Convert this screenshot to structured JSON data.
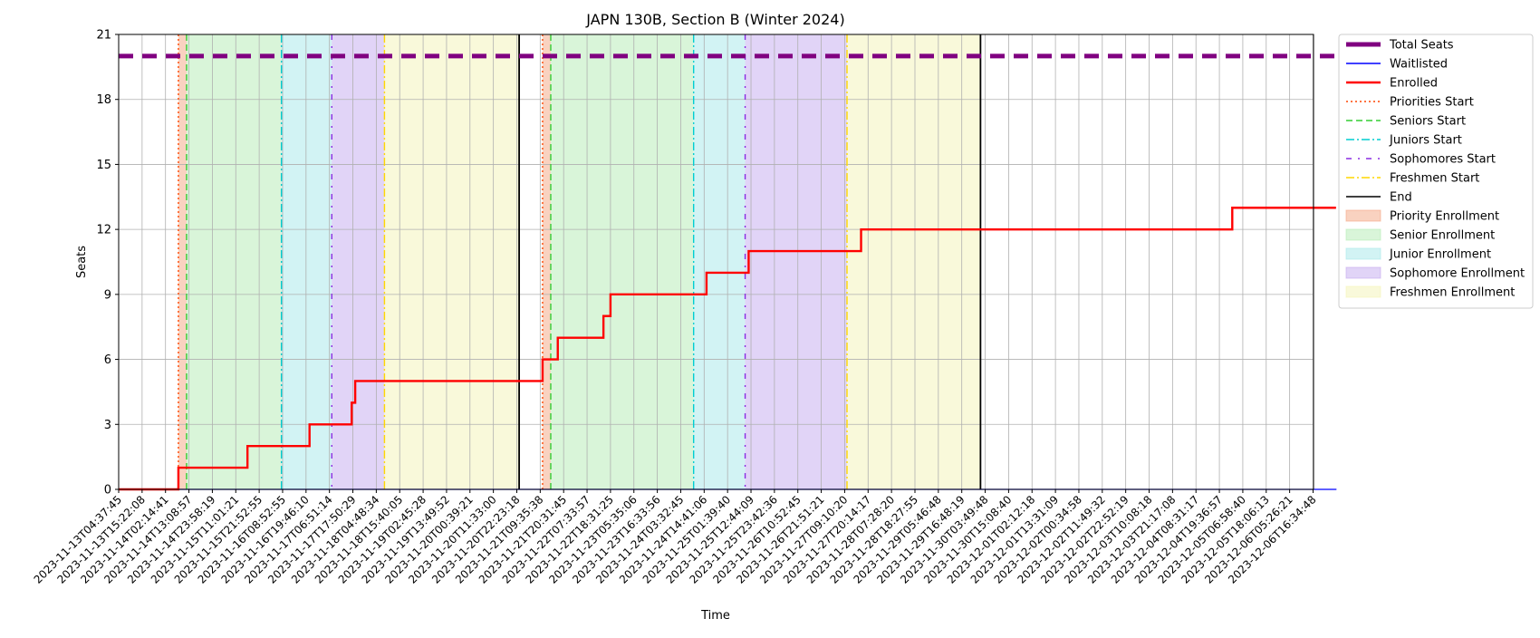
{
  "chart_data": {
    "type": "line",
    "title": "JAPN 130B, Section B (Winter 2024)",
    "xlabel": "Time",
    "ylabel": "Seats",
    "ylim": [
      0,
      21
    ],
    "yticks": [
      0,
      3,
      6,
      9,
      12,
      15,
      18,
      21
    ],
    "xticks": [
      "2023-11-13T04:37:45",
      "2023-11-13T15:22:08",
      "2023-11-14T02:14:41",
      "2023-11-14T13:08:57",
      "2023-11-14T23:58:19",
      "2023-11-15T11:01:21",
      "2023-11-15T21:52:55",
      "2023-11-16T08:52:55",
      "2023-11-16T19:46:10",
      "2023-11-17T06:51:14",
      "2023-11-17T17:50:29",
      "2023-11-18T04:48:34",
      "2023-11-18T15:40:05",
      "2023-11-19T02:45:28",
      "2023-11-19T13:49:52",
      "2023-11-20T00:39:21",
      "2023-11-20T11:33:00",
      "2023-11-20T22:23:18",
      "2023-11-21T09:35:38",
      "2023-11-21T20:31:45",
      "2023-11-22T07:33:57",
      "2023-11-22T18:31:25",
      "2023-11-23T05:35:06",
      "2023-11-23T16:33:56",
      "2023-11-24T03:32:45",
      "2023-11-24T14:41:06",
      "2023-11-25T01:39:40",
      "2023-11-25T12:44:09",
      "2023-11-25T23:42:36",
      "2023-11-26T10:52:45",
      "2023-11-26T21:51:21",
      "2023-11-27T09:10:20",
      "2023-11-27T20:14:17",
      "2023-11-28T07:28:20",
      "2023-11-28T18:27:55",
      "2023-11-29T05:46:48",
      "2023-11-29T16:48:19",
      "2023-11-30T03:49:48",
      "2023-11-30T15:08:40",
      "2023-12-01T02:12:18",
      "2023-12-01T13:31:09",
      "2023-12-02T00:34:58",
      "2023-12-02T11:49:32",
      "2023-12-02T22:52:19",
      "2023-12-03T10:08:18",
      "2023-12-03T21:17:08",
      "2023-12-04T08:31:17",
      "2023-12-04T19:36:57",
      "2023-12-05T06:58:40",
      "2023-12-05T18:06:13",
      "2023-12-06T05:26:21",
      "2023-12-06T16:34:48"
    ],
    "series": [
      {
        "name": "Total Seats",
        "style": "dashed-thick",
        "color": "#800080",
        "points": [
          [
            0,
            20
          ],
          [
            52,
            20
          ]
        ]
      },
      {
        "name": "Waitlisted",
        "style": "solid",
        "color": "#0000ff",
        "points": [
          [
            0,
            0
          ],
          [
            52,
            0
          ]
        ]
      },
      {
        "name": "Enrolled",
        "style": "step",
        "color": "#ff0000",
        "points": [
          [
            0,
            0
          ],
          [
            2.55,
            0
          ],
          [
            2.55,
            1
          ],
          [
            5.5,
            1
          ],
          [
            5.5,
            2
          ],
          [
            8.15,
            2
          ],
          [
            8.15,
            3
          ],
          [
            9.95,
            3
          ],
          [
            9.95,
            4
          ],
          [
            10.1,
            4
          ],
          [
            10.1,
            5
          ],
          [
            18.1,
            5
          ],
          [
            18.1,
            6
          ],
          [
            18.75,
            6
          ],
          [
            18.75,
            7
          ],
          [
            20.7,
            7
          ],
          [
            20.7,
            8
          ],
          [
            21.0,
            8
          ],
          [
            21.0,
            9
          ],
          [
            25.1,
            9
          ],
          [
            25.1,
            10
          ],
          [
            26.9,
            10
          ],
          [
            26.9,
            11
          ],
          [
            31.7,
            11
          ],
          [
            31.7,
            12
          ],
          [
            47.55,
            12
          ],
          [
            47.55,
            13
          ],
          [
            51.98,
            13
          ]
        ]
      }
    ],
    "vertical_lines": [
      {
        "name": "Priorities Start",
        "x": [
          2.55,
          18.1
        ],
        "color": "#ff4500",
        "style": "dotted"
      },
      {
        "name": "Seniors Start",
        "x": [
          2.9,
          18.45
        ],
        "color": "#32cd32",
        "style": "dashed"
      },
      {
        "name": "Juniors Start",
        "x": [
          6.95,
          24.55
        ],
        "color": "#00ced1",
        "style": "dashdot"
      },
      {
        "name": "Sophomores Start",
        "x": [
          9.1,
          26.75
        ],
        "color": "#8a2be2",
        "style": "loosedashdot"
      },
      {
        "name": "Freshmen Start",
        "x": [
          11.35,
          31.1
        ],
        "color": "#ffd700",
        "style": "dashdot"
      },
      {
        "name": "End",
        "x": [
          17.1,
          36.8
        ],
        "color": "#000000",
        "style": "solid"
      }
    ],
    "regions": [
      {
        "name": "Priority Enrollment",
        "color": "#f4a582",
        "spans": [
          [
            2.55,
            2.9
          ],
          [
            18.1,
            18.45
          ]
        ]
      },
      {
        "name": "Senior Enrollment",
        "color": "#b3ecb3",
        "spans": [
          [
            2.9,
            6.95
          ],
          [
            18.45,
            24.55
          ]
        ]
      },
      {
        "name": "Junior Enrollment",
        "color": "#a6e8ea",
        "spans": [
          [
            6.95,
            9.1
          ],
          [
            24.55,
            26.75
          ]
        ]
      },
      {
        "name": "Sophomore Enrollment",
        "color": "#c4a9ef",
        "spans": [
          [
            9.1,
            11.35
          ],
          [
            26.75,
            31.1
          ]
        ]
      },
      {
        "name": "Freshmen Enrollment",
        "color": "#f3f3b6",
        "spans": [
          [
            11.35,
            17.1
          ],
          [
            31.1,
            36.8
          ]
        ]
      }
    ],
    "legend": {
      "placement": "outside-right",
      "entries": [
        {
          "label": "Total Seats",
          "kind": "line",
          "color": "#800080",
          "style": "thick"
        },
        {
          "label": "Waitlisted",
          "kind": "line",
          "color": "#0000ff",
          "style": "solid"
        },
        {
          "label": "Enrolled",
          "kind": "line",
          "color": "#ff0000",
          "style": "solid-thick"
        },
        {
          "label": "Priorities Start",
          "kind": "line",
          "color": "#ff4500",
          "style": "dotted"
        },
        {
          "label": "Seniors Start",
          "kind": "line",
          "color": "#32cd32",
          "style": "dashed"
        },
        {
          "label": "Juniors Start",
          "kind": "line",
          "color": "#00ced1",
          "style": "dashdot"
        },
        {
          "label": "Sophomores Start",
          "kind": "line",
          "color": "#8a2be2",
          "style": "loosedashdot"
        },
        {
          "label": "Freshmen Start",
          "kind": "line",
          "color": "#ffd700",
          "style": "dashdot"
        },
        {
          "label": "End",
          "kind": "line",
          "color": "#000000",
          "style": "solid"
        },
        {
          "label": "Priority Enrollment",
          "kind": "patch",
          "color": "#f4a582"
        },
        {
          "label": "Senior Enrollment",
          "kind": "patch",
          "color": "#b3ecb3"
        },
        {
          "label": "Junior Enrollment",
          "kind": "patch",
          "color": "#a6e8ea"
        },
        {
          "label": "Sophomore Enrollment",
          "kind": "patch",
          "color": "#c4a9ef"
        },
        {
          "label": "Freshmen Enrollment",
          "kind": "patch",
          "color": "#f3f3b6"
        }
      ]
    },
    "grid": true
  }
}
